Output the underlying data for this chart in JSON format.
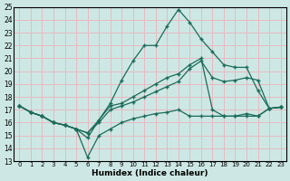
{
  "xlabel": "Humidex (Indice chaleur)",
  "xlim": [
    -0.5,
    23.5
  ],
  "ylim": [
    13,
    25
  ],
  "xticks": [
    0,
    1,
    2,
    3,
    4,
    5,
    6,
    7,
    8,
    9,
    10,
    11,
    12,
    13,
    14,
    15,
    16,
    17,
    18,
    19,
    20,
    21,
    22,
    23
  ],
  "yticks": [
    13,
    14,
    15,
    16,
    17,
    18,
    19,
    20,
    21,
    22,
    23,
    24,
    25
  ],
  "bg_color": "#cde8e4",
  "grid_color": "#e8b8c0",
  "line_color": "#1a6b5a",
  "line1_x": [
    0,
    1,
    2,
    3,
    4,
    5,
    6,
    7,
    8,
    9,
    10,
    11,
    12,
    13,
    14,
    15,
    16,
    17,
    18,
    19,
    20,
    21,
    22,
    23
  ],
  "line1_y": [
    17.3,
    16.8,
    16.5,
    16.0,
    15.8,
    15.5,
    15.2,
    16.0,
    17.0,
    17.3,
    17.6,
    18.0,
    18.4,
    18.8,
    19.2,
    20.2,
    20.8,
    19.5,
    19.2,
    19.3,
    19.5,
    19.3,
    17.1,
    17.2
  ],
  "line2_x": [
    0,
    1,
    2,
    3,
    4,
    5,
    6,
    7,
    8,
    9,
    10,
    11,
    12,
    13,
    14,
    15,
    16,
    17,
    18,
    19,
    20,
    21,
    22,
    23
  ],
  "line2_y": [
    17.3,
    16.8,
    16.5,
    16.0,
    15.8,
    15.5,
    14.8,
    16.2,
    17.5,
    19.3,
    20.8,
    22.0,
    22.0,
    23.5,
    24.8,
    23.8,
    22.5,
    21.5,
    20.5,
    20.3,
    20.3,
    18.5,
    17.1,
    17.2
  ],
  "line3_x": [
    0,
    1,
    2,
    3,
    4,
    5,
    6,
    7,
    8,
    9,
    10,
    11,
    12,
    13,
    14,
    15,
    16,
    17,
    18,
    19,
    20,
    21,
    22,
    23
  ],
  "line3_y": [
    17.3,
    16.8,
    16.5,
    16.0,
    15.8,
    15.5,
    15.2,
    16.2,
    17.3,
    17.5,
    18.0,
    18.5,
    19.0,
    19.5,
    19.8,
    20.5,
    21.0,
    17.0,
    16.5,
    16.5,
    16.7,
    16.5,
    17.1,
    17.2
  ],
  "line4_x": [
    0,
    1,
    2,
    3,
    4,
    5,
    6,
    7,
    8,
    9,
    10,
    11,
    12,
    13,
    14,
    15,
    16,
    17,
    18,
    19,
    20,
    21,
    22,
    23
  ],
  "line4_y": [
    17.3,
    16.8,
    16.5,
    16.0,
    15.8,
    15.5,
    13.3,
    15.0,
    15.5,
    16.0,
    16.3,
    16.5,
    16.7,
    16.8,
    17.0,
    16.5,
    16.5,
    16.5,
    16.5,
    16.5,
    16.5,
    16.5,
    17.1,
    17.2
  ]
}
